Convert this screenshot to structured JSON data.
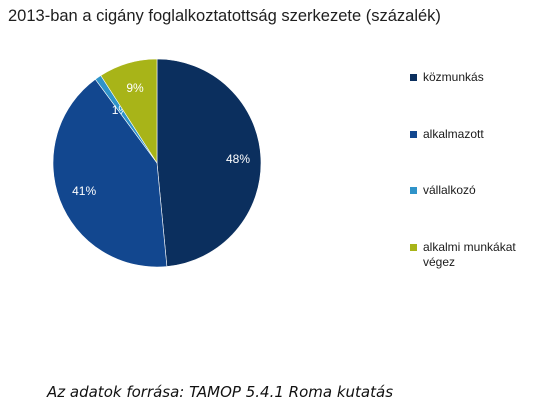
{
  "chart_data": {
    "type": "pie",
    "title": "2013-ban a cigány foglalkoztatottság szerkezete (százalék)",
    "slices": [
      {
        "label": "közmunkás",
        "value": 48,
        "display": "48%",
        "color": "#0b2f5e"
      },
      {
        "label": "alkalmazott",
        "value": 41,
        "display": "41%",
        "color": "#12478f"
      },
      {
        "label": "vállalkozó",
        "value": 1,
        "display": "1%",
        "color": "#2f93c9"
      },
      {
        "label": "alkalmi munkákat végez",
        "value": 9,
        "display": "9%",
        "color": "#a8b418"
      }
    ],
    "legend_position": "right"
  },
  "source": "Az adatok forrása: TAMOP 5.4.1 Roma kutatás"
}
